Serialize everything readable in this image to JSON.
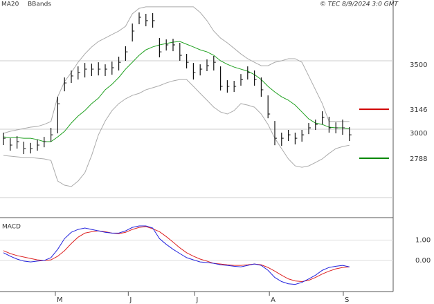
{
  "chart_data": {
    "type": "ohlc",
    "legend": [
      {
        "name": "MA20",
        "color": "#1fa01f"
      },
      {
        "name": "BBands",
        "color": "#aaaaaa"
      }
    ],
    "credit": "© TEC 8/9/2024 3:0 GMT",
    "xticks": [
      {
        "value": 7.65,
        "label": "M"
      },
      {
        "value": 18.4,
        "label": "J"
      },
      {
        "value": 28.2,
        "label": "J"
      },
      {
        "value": 39.2,
        "label": "A"
      },
      {
        "value": 50.1,
        "label": "S"
      }
    ],
    "ylim": [
      2364,
      3944
    ],
    "yticks": [
      3000,
      3500
    ],
    "ygrid": [
      2500,
      3000,
      3500
    ],
    "levels": [
      {
        "value": 3146,
        "label": "3146",
        "color": "#d00000"
      },
      {
        "value": 2788,
        "label": "2788",
        "color": "#008800"
      }
    ],
    "high": [
      2975,
      2934,
      2950,
      2909,
      2900,
      2924,
      2944,
      3010,
      3237,
      3378,
      3429,
      3459,
      3484,
      3479,
      3489,
      3474,
      3494,
      3530,
      3606,
      3772,
      3853,
      3843,
      3848,
      3666,
      3656,
      3661,
      3631,
      3550,
      3484,
      3474,
      3510,
      3535,
      3459,
      3358,
      3353,
      3403,
      3459,
      3429,
      3378,
      3247,
      3060,
      2975,
      2995,
      2975,
      2995,
      3045,
      3070,
      3131,
      3091,
      3050,
      3070,
      3015
    ],
    "low": [
      2884,
      2843,
      2858,
      2818,
      2823,
      2843,
      2868,
      2909,
      2970,
      3277,
      3338,
      3363,
      3378,
      3389,
      3393,
      3389,
      3398,
      3429,
      3500,
      3641,
      3767,
      3752,
      3742,
      3525,
      3575,
      3570,
      3500,
      3444,
      3363,
      3393,
      3424,
      3429,
      3283,
      3267,
      3272,
      3318,
      3363,
      3318,
      3237,
      3080,
      2883,
      2878,
      2914,
      2889,
      2909,
      2964,
      2995,
      3035,
      2975,
      2970,
      2959,
      2914
    ],
    "close": [
      2934,
      2884,
      2909,
      2858,
      2858,
      2884,
      2909,
      2959,
      3186,
      3338,
      3389,
      3414,
      3439,
      3439,
      3439,
      3439,
      3449,
      3489,
      3565,
      3717,
      3818,
      3793,
      3793,
      3565,
      3616,
      3616,
      3540,
      3489,
      3414,
      3439,
      3464,
      3489,
      3313,
      3313,
      3313,
      3363,
      3414,
      3363,
      3288,
      3111,
      2934,
      2934,
      2959,
      2934,
      2959,
      3010,
      3035,
      3086,
      3010,
      3010,
      3010,
      2959
    ],
    "ma20": [
      2944,
      2939,
      2939,
      2934,
      2934,
      2924,
      2909,
      2909,
      2944,
      2984,
      3045,
      3096,
      3136,
      3187,
      3227,
      3288,
      3328,
      3378,
      3439,
      3489,
      3540,
      3580,
      3601,
      3616,
      3626,
      3636,
      3641,
      3621,
      3601,
      3580,
      3565,
      3540,
      3500,
      3474,
      3454,
      3439,
      3424,
      3399,
      3363,
      3313,
      3272,
      3237,
      3212,
      3176,
      3126,
      3075,
      3045,
      3035,
      3015,
      3010,
      3010,
      3005
    ],
    "bb_upper": [
      2970,
      2985,
      2995,
      3005,
      3015,
      3020,
      3035,
      3056,
      3237,
      3348,
      3414,
      3489,
      3550,
      3601,
      3641,
      3666,
      3692,
      3717,
      3752,
      3843,
      3883,
      3894,
      3894,
      3894,
      3894,
      3894,
      3894,
      3894,
      3894,
      3853,
      3793,
      3717,
      3666,
      3631,
      3591,
      3550,
      3515,
      3489,
      3464,
      3464,
      3489,
      3500,
      3515,
      3515,
      3489,
      3389,
      3288,
      3187,
      3056,
      3056,
      3056,
      3056
    ],
    "bb_lower": [
      2808,
      2803,
      2798,
      2793,
      2793,
      2788,
      2783,
      2772,
      2621,
      2591,
      2581,
      2621,
      2682,
      2808,
      2959,
      3060,
      3136,
      3187,
      3222,
      3247,
      3262,
      3288,
      3303,
      3318,
      3338,
      3353,
      3363,
      3363,
      3313,
      3262,
      3212,
      3161,
      3126,
      3111,
      3136,
      3187,
      3176,
      3161,
      3111,
      3035,
      2934,
      2858,
      2783,
      2732,
      2722,
      2732,
      2757,
      2783,
      2823,
      2858,
      2873,
      2883
    ],
    "macd_title": "MACD",
    "macd_ylim": [
      -1.52,
      2.03
    ],
    "macd_yticks": [
      {
        "value": 1,
        "label": "1.00"
      },
      {
        "value": 0,
        "label": "0.00"
      }
    ],
    "macd": [
      0.38,
      0.21,
      0.07,
      -0.03,
      -0.07,
      -0.03,
      0,
      0.14,
      0.55,
      1.07,
      1.38,
      1.52,
      1.59,
      1.52,
      1.45,
      1.38,
      1.34,
      1.34,
      1.45,
      1.62,
      1.69,
      1.69,
      1.59,
      1.07,
      0.79,
      0.55,
      0.34,
      0.14,
      0.03,
      -0.07,
      -0.1,
      -0.14,
      -0.21,
      -0.24,
      -0.28,
      -0.31,
      -0.24,
      -0.17,
      -0.24,
      -0.48,
      -0.83,
      -1.03,
      -1.14,
      -1.17,
      -1.07,
      -0.9,
      -0.72,
      -0.48,
      -0.34,
      -0.28,
      -0.24,
      -0.31
    ],
    "signal": [
      0.48,
      0.34,
      0.24,
      0.17,
      0.1,
      0.03,
      0,
      0.03,
      0.21,
      0.48,
      0.83,
      1.14,
      1.34,
      1.41,
      1.45,
      1.41,
      1.34,
      1.31,
      1.38,
      1.52,
      1.62,
      1.66,
      1.55,
      1.41,
      1.17,
      0.9,
      0.62,
      0.38,
      0.21,
      0.07,
      -0.03,
      -0.14,
      -0.17,
      -0.21,
      -0.24,
      -0.24,
      -0.21,
      -0.17,
      -0.21,
      -0.34,
      -0.52,
      -0.72,
      -0.9,
      -1.0,
      -1.03,
      -0.97,
      -0.83,
      -0.66,
      -0.52,
      -0.41,
      -0.34,
      -0.31
    ],
    "macd_color": "#2222dd",
    "signal_color": "#dd2222"
  }
}
